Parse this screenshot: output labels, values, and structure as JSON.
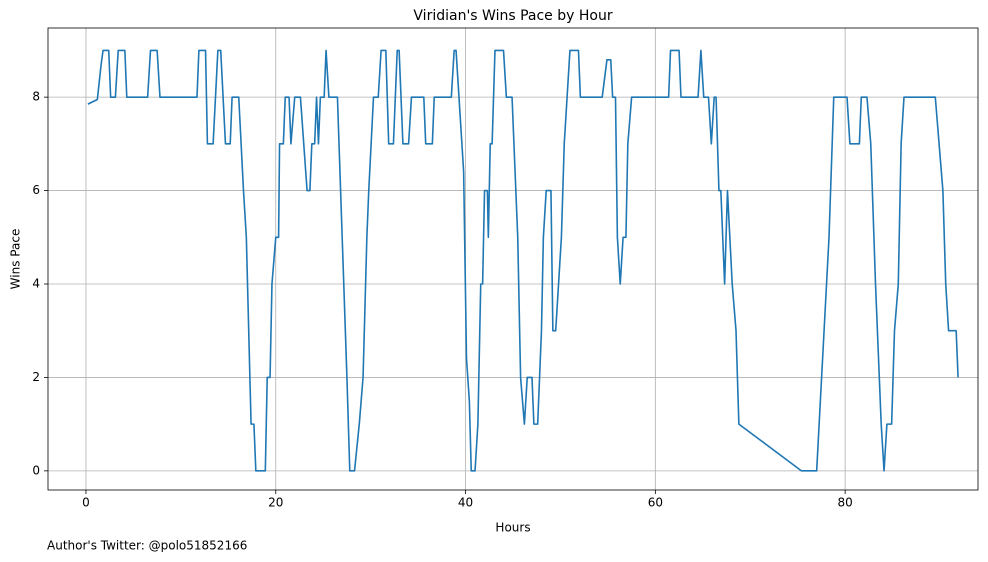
{
  "chart_data": {
    "type": "line",
    "title": "Viridian's Wins Pace by Hour",
    "xlabel": "Hours",
    "ylabel": "Wins Pace",
    "annotation": "Author's Twitter: @polo51852166",
    "color": "#1f77b4",
    "grid": true,
    "xlim": [
      -4,
      94
    ],
    "ylim": [
      -0.41,
      9.48
    ],
    "xticks": [
      0,
      20,
      40,
      60,
      80
    ],
    "yticks": [
      0,
      2,
      4,
      6,
      8
    ],
    "x": [
      0.2,
      1.2,
      1.6,
      1.8,
      2.4,
      2.6,
      3.1,
      3.4,
      4.1,
      4.3,
      6.5,
      6.8,
      7.5,
      7.8,
      11.7,
      11.9,
      12.6,
      12.8,
      13.4,
      13.9,
      14.2,
      14.7,
      15.2,
      15.4,
      16.1,
      16.6,
      16.9,
      17.4,
      17.7,
      17.9,
      18.9,
      19.1,
      19.4,
      19.6,
      20.0,
      20.3,
      20.4,
      20.8,
      21.0,
      21.4,
      21.6,
      22.0,
      22.6,
      23.3,
      23.6,
      23.8,
      24.1,
      24.3,
      24.5,
      24.7,
      25.1,
      25.3,
      25.6,
      26.5,
      27.0,
      27.5,
      27.8,
      28.3,
      28.8,
      29.2,
      29.6,
      29.8,
      30.3,
      30.8,
      31.1,
      31.6,
      31.9,
      32.4,
      32.8,
      33.0,
      33.4,
      34.0,
      34.3,
      35.6,
      35.8,
      36.5,
      36.7,
      38.5,
      38.8,
      39.0,
      39.8,
      40.1,
      40.4,
      40.6,
      41.0,
      41.3,
      41.6,
      41.8,
      42.0,
      42.3,
      42.4,
      42.6,
      42.8,
      43.1,
      44.0,
      44.3,
      44.9,
      45.5,
      45.8,
      46.2,
      46.5,
      47.0,
      47.2,
      47.6,
      48.0,
      48.2,
      48.5,
      49.0,
      49.2,
      49.5,
      50.1,
      50.4,
      51.0,
      51.9,
      52.1,
      54.4,
      54.9,
      55.3,
      55.5,
      55.8,
      56.0,
      56.3,
      56.6,
      56.9,
      57.1,
      57.5,
      61.4,
      61.6,
      62.5,
      62.7,
      64.5,
      64.8,
      65.1,
      65.6,
      65.9,
      66.2,
      66.4,
      66.7,
      66.9,
      67.3,
      67.6,
      68.1,
      68.5,
      68.8,
      75.4,
      77.0,
      78.3,
      78.8,
      80.2,
      80.5,
      81.5,
      81.7,
      82.3,
      82.7,
      83.2,
      83.8,
      84.1,
      84.4,
      84.9,
      85.2,
      85.6,
      85.9,
      86.2,
      89.5,
      90.3,
      90.6,
      90.9,
      91.7,
      91.9
    ],
    "values": [
      7.85,
      7.95,
      8.7,
      9,
      9,
      8,
      8,
      9,
      9,
      8,
      8,
      9,
      9,
      8,
      8,
      9,
      9,
      7,
      7,
      9,
      9,
      7,
      7,
      8,
      8,
      6,
      5,
      1,
      1,
      0,
      0,
      2,
      2,
      4,
      5,
      5,
      7,
      7,
      8,
      8,
      7,
      8,
      8,
      6,
      6,
      7,
      7,
      8,
      7,
      8,
      8,
      9,
      8,
      8,
      5,
      2,
      0,
      0,
      1,
      2,
      5,
      6,
      8,
      8,
      9,
      9,
      7,
      7,
      9,
      9,
      7,
      7,
      8,
      8,
      7,
      7,
      8,
      8,
      9,
      9,
      6.4,
      2.4,
      1.5,
      0,
      0,
      1,
      4,
      4,
      6,
      6,
      5,
      7,
      7,
      9,
      9,
      8,
      8,
      5,
      2,
      1,
      2,
      2,
      1,
      1,
      3,
      5,
      6,
      6,
      3,
      3,
      5,
      7,
      9,
      9,
      8,
      8,
      8.8,
      8.8,
      8,
      8,
      5,
      4,
      5,
      5,
      7,
      8,
      8,
      9,
      9,
      8,
      8,
      9,
      8,
      8,
      7,
      8,
      8,
      6,
      6,
      4,
      6,
      4,
      3,
      1,
      0,
      0,
      5,
      8,
      8,
      7,
      7,
      8,
      8,
      7,
      4,
      1,
      0,
      1,
      1,
      3,
      4,
      7,
      8,
      8,
      6,
      4,
      3,
      3,
      2
    ]
  }
}
